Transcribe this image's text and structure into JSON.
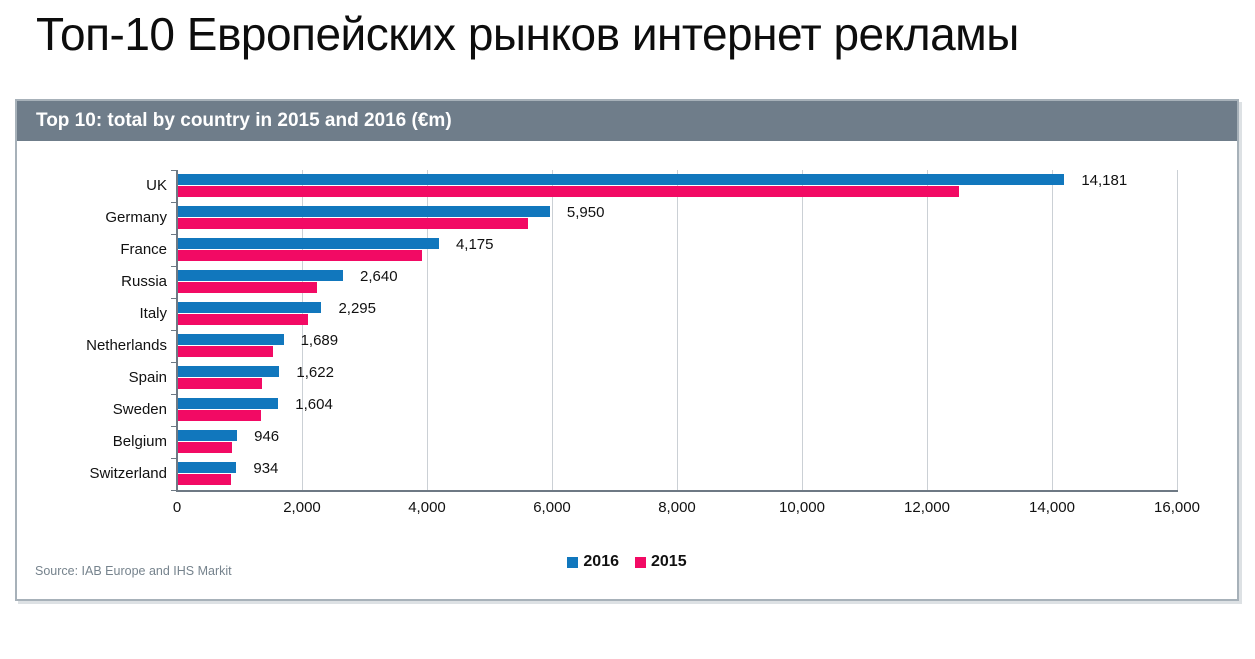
{
  "page": {
    "title": "Топ-10 Европейских рынков интернет рекламы"
  },
  "panel": {
    "header": "Top 10: total by country in 2015 and 2016 (€m)",
    "source": "Source: IAB Europe and IHS Markit"
  },
  "chart_data": {
    "type": "bar",
    "orientation": "horizontal",
    "title": "Top 10: total by country in 2015 and 2016 (€m)",
    "categories": [
      "UK",
      "Germany",
      "France",
      "Russia",
      "Italy",
      "Netherlands",
      "Spain",
      "Sweden",
      "Belgium",
      "Switzerland"
    ],
    "series": [
      {
        "name": "2016",
        "color": "#1177bd",
        "values": [
          14181,
          5950,
          4175,
          2640,
          2295,
          1689,
          1622,
          1604,
          946,
          934
        ]
      },
      {
        "name": "2015",
        "color": "#f20a64",
        "values": [
          12500,
          5600,
          3910,
          2220,
          2080,
          1520,
          1340,
          1330,
          870,
          840
        ]
      }
    ],
    "value_labels": [
      "14,181",
      "5,950",
      "4,175",
      "2,640",
      "2,295",
      "1,689",
      "1,622",
      "1,604",
      "946",
      "934"
    ],
    "xlim": [
      0,
      16000
    ],
    "x_ticks": [
      0,
      2000,
      4000,
      6000,
      8000,
      10000,
      12000,
      14000,
      16000
    ],
    "x_tick_labels": [
      "0",
      "2,000",
      "4,000",
      "6,000",
      "8,000",
      "10,000",
      "12,000",
      "14,000",
      "16,000"
    ],
    "grid": "vertical",
    "legend": {
      "position": "bottom-center",
      "entries": [
        "2016",
        "2015"
      ]
    },
    "colors": {
      "header_bg": "#6f7d8a",
      "gridline": "#cbd0d5",
      "axis": "#6e7984",
      "source_text": "#76838d"
    }
  }
}
